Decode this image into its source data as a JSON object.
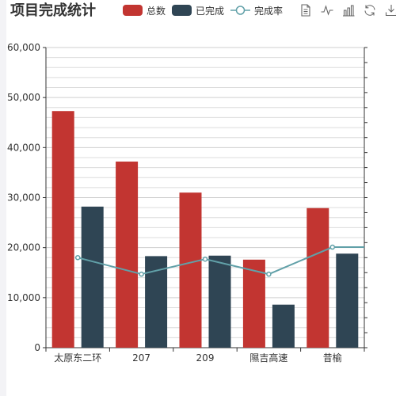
{
  "title": "项目完成统计",
  "legend": [
    {
      "name": "总数",
      "kind": "bar",
      "color": "#c23531"
    },
    {
      "name": "已完成",
      "kind": "bar",
      "color": "#2f4554"
    },
    {
      "name": "完成率",
      "kind": "line",
      "color": "#61a0a8"
    }
  ],
  "toolbox": [
    "data-view-icon",
    "line-chart-icon",
    "bar-chart-icon",
    "restore-icon",
    "save-image-icon"
  ],
  "chart_data": {
    "type": "bar",
    "title": "项目完成统计",
    "categories": [
      "太原东二环",
      "207",
      "209",
      "隰吉高速",
      "昔榆"
    ],
    "ylim": [
      0,
      60000
    ],
    "yticks": [
      0,
      10000,
      20000,
      30000,
      40000,
      50000,
      60000
    ],
    "ytick_labels": [
      "0",
      "10,000",
      "20,000",
      "30,000",
      "40,000",
      "50,000",
      "60,000"
    ],
    "grid": true,
    "legend_position": "top",
    "series": [
      {
        "name": "总数",
        "type": "bar",
        "color": "#c23531",
        "values": [
          47300,
          37200,
          31000,
          17600,
          27900
        ]
      },
      {
        "name": "已完成",
        "type": "bar",
        "color": "#2f4554",
        "values": [
          28200,
          18300,
          18400,
          8600,
          18800
        ]
      },
      {
        "name": "完成率",
        "type": "line",
        "color": "#61a0a8",
        "values": [
          0.6,
          0.49,
          0.59,
          0.49,
          0.67
        ]
      }
    ],
    "y2lim": [
      0,
      10
    ]
  }
}
